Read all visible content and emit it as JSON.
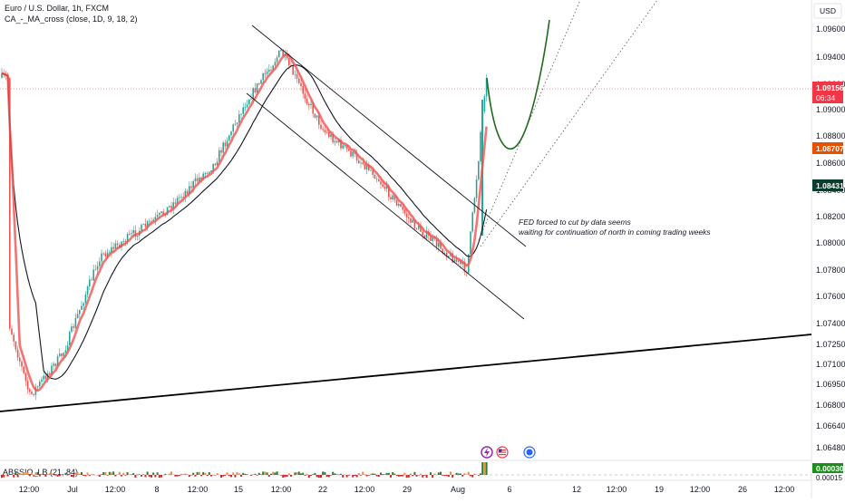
{
  "header": {
    "symbol_title": "Euro / U.S. Dollar, 1h, FXCM",
    "indicator_legend": "CA_-_MA_cross (close, 1D, 9, 18, 2)"
  },
  "currency_button": "USD",
  "annotation": {
    "line1": "FED forced to cut by data seems",
    "line2": "waiting for continuation of north in coming trading weeks"
  },
  "price_badges": {
    "current_price": "1.09156",
    "countdown": "06:34",
    "orange_level": "1.08707",
    "dark_level": "1.08431"
  },
  "oscillator": {
    "label": "ABSSIO_LB (21, 84)",
    "badge_top": "0.00030",
    "badge_bottom": "0.00015"
  },
  "colors": {
    "candle_up": "#26a69a",
    "candle_down": "#ef5350",
    "ma_fast": "#ef5350",
    "ma_slow": "#131722",
    "channel": "#131722",
    "projection": "#1e6b1e",
    "current_price": "#f23645",
    "orange_level": "#e65100",
    "dark_level": "#0b3d2e"
  },
  "icons": [
    "lightning-event-icon",
    "us-flag-event-icon",
    "economic-event-icon"
  ],
  "chart_data": {
    "type": "candlestick",
    "x_tick_labels": [
      "12:00",
      "Jul",
      "12:00",
      "8",
      "12:00",
      "15",
      "12:00",
      "22",
      "12:00",
      "29",
      "Aug",
      "6",
      "12",
      "12:00",
      "19",
      "12:00",
      "26",
      "12:00"
    ],
    "y_tick_labels": [
      "1.09600",
      "1.09400",
      "1.09200",
      "1.09000",
      "1.08800",
      "1.08600",
      "1.08400",
      "1.08200",
      "1.08000",
      "1.07800",
      "1.07600",
      "1.07400",
      "1.07250",
      "1.07100",
      "1.06950",
      "1.06800",
      "1.06640",
      "1.06480"
    ],
    "price_path_approx": [
      {
        "time": "Jun 26",
        "price": 1.074
      },
      {
        "time": "Jun 27",
        "price": 1.0685
      },
      {
        "time": "Jul 1",
        "price": 1.0718
      },
      {
        "time": "Jul 3",
        "price": 1.079
      },
      {
        "time": "Jul 8",
        "price": 1.082
      },
      {
        "time": "Jul 11",
        "price": 1.086
      },
      {
        "time": "Jul 15",
        "price": 1.0905
      },
      {
        "time": "Jul 17",
        "price": 1.0945
      },
      {
        "time": "Jul 22",
        "price": 1.0885
      },
      {
        "time": "Jul 26",
        "price": 1.0855
      },
      {
        "time": "Jul 29",
        "price": 1.0815
      },
      {
        "time": "Aug 1",
        "price": 1.078
      },
      {
        "time": "Aug 2",
        "price": 1.0925
      }
    ],
    "levels": {
      "current_price": 1.09156,
      "orange_level": 1.08707,
      "dark_level": 1.08431
    }
  }
}
